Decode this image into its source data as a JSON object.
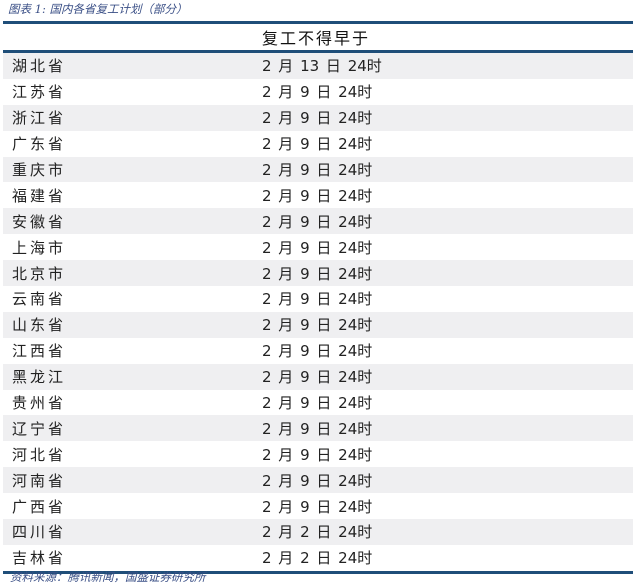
{
  "caption": "图表 1:  国内各省复工计划（部分）",
  "header": "复工不得早于",
  "rows": [
    {
      "province": "湖北省",
      "date": "2 月 13 日 24时"
    },
    {
      "province": "江苏省",
      "date": "2 月 9 日 24时"
    },
    {
      "province": "浙江省",
      "date": "2 月 9 日 24时"
    },
    {
      "province": "广东省",
      "date": "2 月 9 日 24时"
    },
    {
      "province": "重庆市",
      "date": "2 月 9 日 24时"
    },
    {
      "province": "福建省",
      "date": "2 月 9 日 24时"
    },
    {
      "province": "安徽省",
      "date": "2 月 9 日 24时"
    },
    {
      "province": "上海市",
      "date": "2 月 9 日 24时"
    },
    {
      "province": "北京市",
      "date": "2 月 9 日 24时"
    },
    {
      "province": "云南省",
      "date": "2 月 9 日 24时"
    },
    {
      "province": "山东省",
      "date": "2 月 9 日 24时"
    },
    {
      "province": "江西省",
      "date": "2 月 9 日 24时"
    },
    {
      "province": "黑龙江",
      "date": "2 月 9 日 24时"
    },
    {
      "province": "贵州省",
      "date": "2 月 9 日 24时"
    },
    {
      "province": "辽宁省",
      "date": "2 月 9 日 24时"
    },
    {
      "province": "河北省",
      "date": "2 月 9 日 24时"
    },
    {
      "province": "河南省",
      "date": "2 月 9 日 24时"
    },
    {
      "province": "广西省",
      "date": "2 月 9 日 24时"
    },
    {
      "province": "四川省",
      "date": "2 月 2 日 24时"
    },
    {
      "province": "吉林省",
      "date": "2 月 2 日 24时"
    }
  ],
  "source": "资料来源：腾讯新闻，国盛证券研究所",
  "colors": {
    "rule": "#1f4e79",
    "caption": "#3a4f86",
    "stripe": "#efeff1"
  }
}
